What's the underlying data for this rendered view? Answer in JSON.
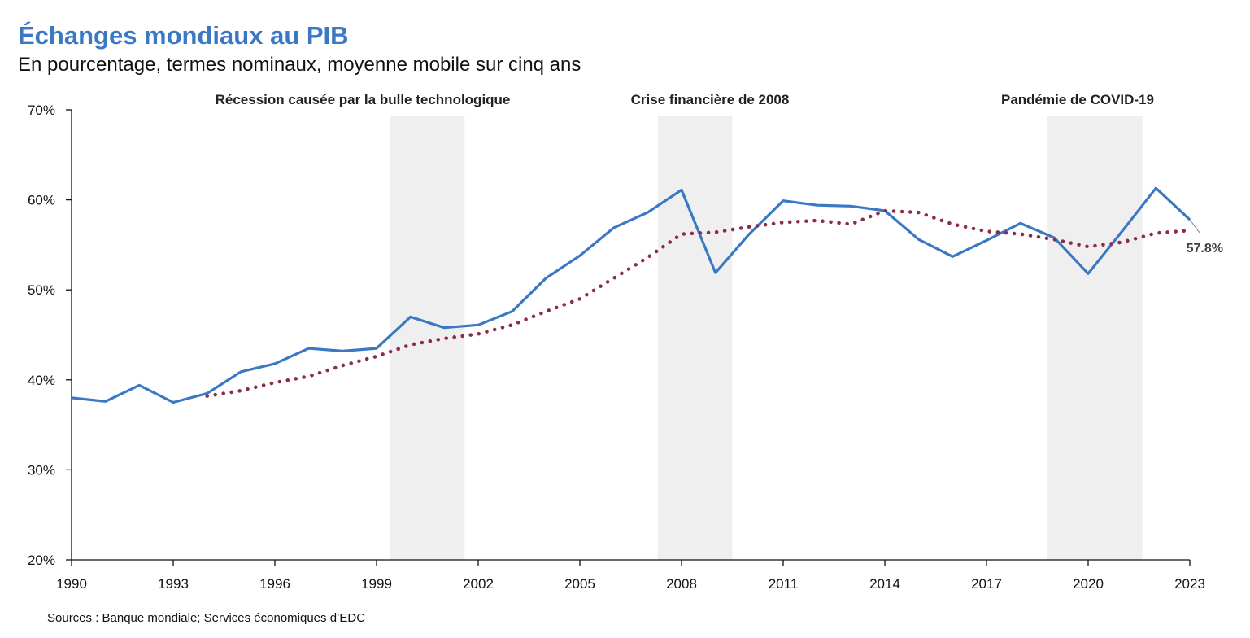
{
  "chart_data": {
    "type": "line",
    "title": "Échanges mondiaux au PIB",
    "subtitle": "En pourcentage, termes nominaux, moyenne mobile sur cinq ans",
    "source": "Sources : Banque mondiale; Services économiques d’EDC",
    "xlim": [
      1990,
      2023
    ],
    "ylim": [
      20,
      70
    ],
    "x_ticks": [
      1990,
      1993,
      1996,
      1999,
      2002,
      2005,
      2008,
      2011,
      2014,
      2017,
      2020,
      2023
    ],
    "y_ticks": [
      20,
      30,
      40,
      50,
      60,
      70
    ],
    "y_tick_labels": [
      "20%",
      "30%",
      "40%",
      "50%",
      "60%",
      "70%"
    ],
    "grid": false,
    "shaded_periods": [
      {
        "label": "Récession causée par la bulle technologique",
        "start": 1999.4,
        "end": 2001.6
      },
      {
        "label": "Crise financière de 2008",
        "start": 2007.3,
        "end": 2009.5
      },
      {
        "label": "Pandémie de COVID-19",
        "start": 2018.8,
        "end": 2021.6
      }
    ],
    "series": [
      {
        "style": "solid",
        "color": "#3a78c4",
        "x": [
          1990,
          1991,
          1992,
          1993,
          1994,
          1995,
          1996,
          1997,
          1998,
          1999,
          2000,
          2001,
          2002,
          2003,
          2004,
          2005,
          2006,
          2007,
          2008,
          2009,
          2010,
          2011,
          2012,
          2013,
          2014,
          2015,
          2016,
          2017,
          2018,
          2019,
          2020,
          2021,
          2022,
          2023
        ],
        "values": [
          38.0,
          37.6,
          39.4,
          37.5,
          38.5,
          40.9,
          41.8,
          43.5,
          43.2,
          43.5,
          47.0,
          45.8,
          46.1,
          47.6,
          51.3,
          53.8,
          56.9,
          58.6,
          61.1,
          51.9,
          56.2,
          59.9,
          59.4,
          59.3,
          58.8,
          55.6,
          53.7,
          55.5,
          57.4,
          55.8,
          51.8,
          56.5,
          61.3,
          57.8
        ]
      },
      {
        "style": "dotted",
        "color": "#8b2c4c",
        "x": [
          1994,
          1995,
          1996,
          1997,
          1998,
          1999,
          2000,
          2001,
          2002,
          2003,
          2004,
          2005,
          2006,
          2007,
          2008,
          2009,
          2010,
          2011,
          2012,
          2013,
          2014,
          2015,
          2016,
          2017,
          2018,
          2019,
          2020,
          2021,
          2022,
          2023
        ],
        "values": [
          38.2,
          38.8,
          39.7,
          40.4,
          41.6,
          42.6,
          43.9,
          44.6,
          45.1,
          46.1,
          47.6,
          49.0,
          51.3,
          53.6,
          56.2,
          56.4,
          57.0,
          57.5,
          57.7,
          57.3,
          58.8,
          58.6,
          57.3,
          56.5,
          56.2,
          55.6,
          54.8,
          55.3,
          56.3,
          56.6
        ]
      }
    ],
    "end_label": "57.8%"
  }
}
